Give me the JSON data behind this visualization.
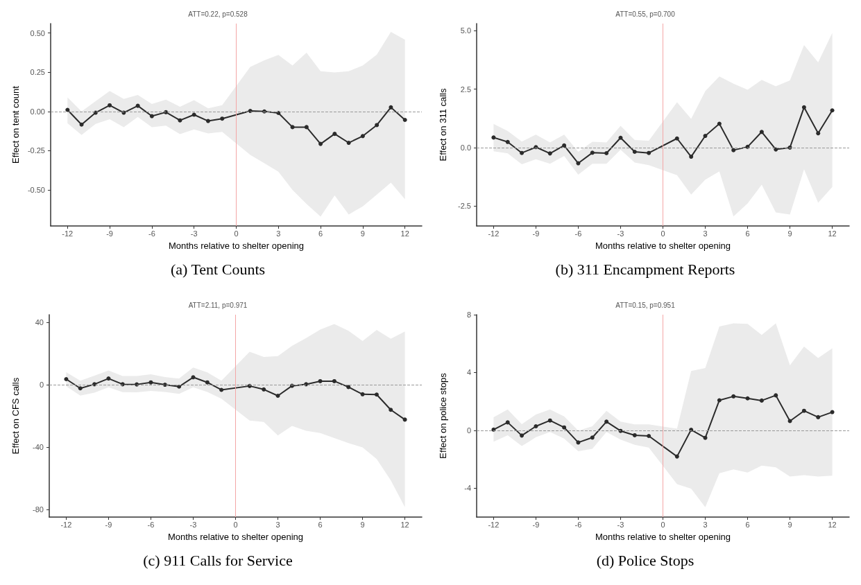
{
  "chart_data": [
    {
      "type": "line",
      "title": "ATT=0.22, p=0.528",
      "xlabel": "Months relative to shelter opening",
      "ylabel": "Effect on tent count",
      "annotations": [
        "(a) Tent Counts"
      ],
      "xlim": [
        -13.2,
        13.2
      ],
      "xticks": [
        -12,
        -9,
        -6,
        -3,
        0,
        3,
        6,
        9,
        12
      ],
      "ylim": [
        -0.73,
        0.56
      ],
      "yticks": [
        {
          "value": -0.5,
          "label": "-0.50"
        },
        {
          "value": -0.25,
          "label": "-0.25"
        },
        {
          "value": 0,
          "label": "0.00"
        },
        {
          "value": 0.25,
          "label": "0.25"
        },
        {
          "value": 0.5,
          "label": "0.50"
        }
      ],
      "grid": false,
      "marker": "circle",
      "line_style": "solid",
      "ref_lines": [
        {
          "axis": "y",
          "value": 0,
          "color": "#999999",
          "line_style": "dashed"
        },
        {
          "axis": "x",
          "value": 0,
          "color": "#f4a6a6",
          "line_style": "solid"
        }
      ],
      "series": [
        {
          "color": "#2b2b2b",
          "x": [
            -12,
            -11,
            -10,
            -9,
            -8,
            -7,
            -6,
            -5,
            -4,
            -3,
            -2,
            -1,
            1,
            2,
            3,
            4,
            5,
            6,
            7,
            8,
            9,
            10,
            11,
            12
          ],
          "values": [
            0.01,
            -0.084,
            -0.008,
            0.039,
            -0.008,
            0.036,
            -0.03,
            -0.005,
            -0.057,
            -0.021,
            -0.061,
            -0.046,
            0.003,
            0.0,
            -0.01,
            -0.1,
            -0.1,
            -0.207,
            -0.143,
            -0.2,
            -0.157,
            -0.087,
            0.026,
            -0.054
          ],
          "lower": [
            -0.075,
            -0.15,
            -0.08,
            -0.05,
            -0.1,
            -0.035,
            -0.1,
            -0.09,
            -0.145,
            -0.115,
            -0.14,
            -0.13,
            -0.277,
            -0.33,
            -0.384,
            -0.5,
            -0.59,
            -0.67,
            -0.536,
            -0.657,
            -0.605,
            -0.53,
            -0.454,
            -0.56
          ],
          "upper": [
            0.09,
            0.0,
            0.065,
            0.13,
            0.08,
            0.105,
            0.048,
            0.075,
            0.03,
            0.072,
            0.02,
            0.04,
            0.284,
            0.326,
            0.36,
            0.293,
            0.375,
            0.256,
            0.248,
            0.256,
            0.293,
            0.362,
            0.507,
            0.457
          ]
        }
      ]
    },
    {
      "type": "line",
      "title": "ATT=0.55, p=0.700",
      "xlabel": "Months relative to shelter opening",
      "ylabel": "Effect on 311 calls",
      "annotations": [
        "(b) 311 Encampment Reports"
      ],
      "xlim": [
        -13.2,
        13.2
      ],
      "xticks": [
        -12,
        -9,
        -6,
        -3,
        0,
        3,
        6,
        9,
        12
      ],
      "ylim": [
        -3.35,
        5.3
      ],
      "yticks": [
        {
          "value": -2.5,
          "label": "-2.5"
        },
        {
          "value": 0,
          "label": "0.0"
        },
        {
          "value": 2.5,
          "label": "2.5"
        },
        {
          "value": 5,
          "label": "5.0"
        }
      ],
      "grid": false,
      "marker": "circle",
      "line_style": "solid",
      "ref_lines": [
        {
          "axis": "y",
          "value": 0,
          "color": "#999999",
          "line_style": "dashed"
        },
        {
          "axis": "x",
          "value": 0,
          "color": "#f4a6a6",
          "line_style": "solid"
        }
      ],
      "series": [
        {
          "color": "#2b2b2b",
          "x": [
            -12,
            -11,
            -10,
            -9,
            -8,
            -7,
            -6,
            -5,
            -4,
            -3,
            -2,
            -1,
            1,
            2,
            3,
            4,
            5,
            6,
            7,
            8,
            9,
            10,
            11,
            12
          ],
          "values": [
            0.43,
            0.24,
            -0.23,
            0.02,
            -0.25,
            0.09,
            -0.67,
            -0.22,
            -0.24,
            0.42,
            -0.18,
            -0.23,
            0.39,
            -0.39,
            0.5,
            1.02,
            -0.11,
            0.03,
            0.67,
            -0.08,
            0.0,
            1.72,
            0.61,
            1.59
          ],
          "lower": [
            -0.16,
            -0.25,
            -0.71,
            -0.5,
            -0.69,
            -0.36,
            -1.16,
            -0.69,
            -0.69,
            -0.09,
            -0.64,
            -0.75,
            -1.18,
            -2.01,
            -1.37,
            -1.02,
            -2.94,
            -2.39,
            -1.59,
            -2.77,
            -2.86,
            -0.93,
            -2.36,
            -1.68
          ],
          "upper": [
            1.01,
            0.71,
            0.26,
            0.55,
            0.22,
            0.55,
            -0.18,
            0.25,
            0.22,
            0.93,
            0.32,
            0.29,
            1.94,
            1.23,
            2.41,
            3.04,
            2.73,
            2.47,
            2.89,
            2.62,
            2.87,
            4.38,
            3.64,
            4.9
          ]
        }
      ]
    },
    {
      "type": "line",
      "title": "ATT=2.11, p=0.971",
      "xlabel": "Months relative to shelter opening",
      "ylabel": "Effect on CFS calls",
      "annotations": [
        "(c) 911 Calls for Service"
      ],
      "xlim": [
        -13.2,
        13.2
      ],
      "xticks": [
        -12,
        -9,
        -6,
        -3,
        0,
        3,
        6,
        9,
        12
      ],
      "ylim": [
        -85,
        45
      ],
      "yticks": [
        -80,
        -40,
        0,
        40
      ],
      "grid": false,
      "marker": "circle",
      "line_style": "solid",
      "ref_lines": [
        {
          "axis": "y",
          "value": 0,
          "color": "#999999",
          "line_style": "dashed"
        },
        {
          "axis": "x",
          "value": 0,
          "color": "#f4a6a6",
          "line_style": "solid"
        }
      ],
      "series": [
        {
          "color": "#2b2b2b",
          "x": [
            -12,
            -11,
            -10,
            -9,
            -8,
            -7,
            -6,
            -5,
            -4,
            -3,
            -2,
            -1,
            1,
            2,
            3,
            4,
            5,
            6,
            7,
            8,
            9,
            10,
            11,
            12
          ],
          "values": [
            3.6,
            -2.3,
            0.3,
            4.0,
            0.3,
            0.2,
            1.5,
            0,
            -1.2,
            4.8,
            1.5,
            -3.3,
            -0.8,
            -3,
            -7.1,
            -0.7,
            0.3,
            2.3,
            2.3,
            -1.5,
            -6.1,
            -6.3,
            -16.1,
            -22.4
          ],
          "lower": [
            -1,
            -7,
            -5.1,
            -1.6,
            -4.8,
            -4.9,
            -4,
            -4.6,
            -5.9,
            -1.6,
            -4.6,
            -9,
            -23,
            -23.9,
            -32.6,
            -26.5,
            -29.6,
            -31,
            -34.2,
            -37.5,
            -40.3,
            -47.7,
            -61.4,
            -78.7
          ],
          "upper": [
            8,
            2.6,
            5.8,
            9.2,
            5.6,
            5.6,
            6.7,
            4.9,
            4,
            11,
            7.9,
            2.6,
            21.2,
            17.8,
            18.4,
            25,
            30,
            35.4,
            39,
            34.7,
            28.1,
            35.2,
            29.5,
            34.2
          ]
        }
      ]
    },
    {
      "type": "line",
      "title": "ATT=0.15, p=0.951",
      "xlabel": "Months relative to shelter opening",
      "ylabel": "Effect on police stops",
      "annotations": [
        "(d) Police Stops"
      ],
      "xlim": [
        -13.2,
        13.2
      ],
      "xticks": [
        -12,
        -9,
        -6,
        -3,
        0,
        3,
        6,
        9,
        12
      ],
      "ylim": [
        -6,
        8
      ],
      "yticks": [
        -4,
        0,
        4,
        8
      ],
      "grid": false,
      "marker": "circle",
      "line_style": "solid",
      "ref_lines": [
        {
          "axis": "y",
          "value": 0,
          "color": "#999999",
          "line_style": "dashed"
        },
        {
          "axis": "x",
          "value": 0,
          "color": "#f4a6a6",
          "line_style": "solid"
        }
      ],
      "series": [
        {
          "color": "#2b2b2b",
          "x": [
            -12,
            -11,
            -10,
            -9,
            -8,
            -7,
            -6,
            -5,
            -4,
            -3,
            -2,
            -1,
            1,
            2,
            3,
            4,
            5,
            6,
            7,
            8,
            9,
            10,
            11,
            12
          ],
          "values": [
            0.05,
            0.55,
            -0.36,
            0.28,
            0.68,
            0.2,
            -0.84,
            -0.5,
            0.6,
            -0.04,
            -0.34,
            -0.39,
            -1.81,
            0.04,
            -0.52,
            2.08,
            2.35,
            2.21,
            2.06,
            2.42,
            0.64,
            1.35,
            0.91,
            1.26
          ],
          "lower": [
            -0.78,
            -0.34,
            -1.09,
            -0.48,
            -0.11,
            -0.57,
            -1.44,
            -1.28,
            -0.12,
            -0.64,
            -1.0,
            -1.19,
            -3.72,
            -4.04,
            -5.32,
            -2.97,
            -2.7,
            -2.92,
            -2.44,
            -2.56,
            -3.19,
            -3.1,
            -3.19,
            -3.13
          ],
          "upper": [
            0.91,
            1.44,
            0.43,
            1.09,
            1.44,
            0.96,
            -0.02,
            0.28,
            1.35,
            0.6,
            0.41,
            0.41,
            0.11,
            4.11,
            4.31,
            7.19,
            7.4,
            7.37,
            6.6,
            7.4,
            4.5,
            5.8,
            5.0,
            5.68
          ]
        }
      ]
    }
  ]
}
